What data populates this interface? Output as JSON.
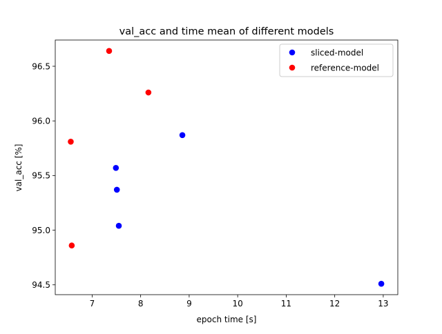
{
  "chart_data": {
    "type": "scatter",
    "title": "val_acc and time mean of different models",
    "xlabel": "epoch time [s]",
    "ylabel": "val_acc [%]",
    "xlim": [
      6.24,
      13.3
    ],
    "ylim": [
      94.41,
      96.74
    ],
    "xticks": [
      {
        "value": 7,
        "label": "7"
      },
      {
        "value": 8,
        "label": "8"
      },
      {
        "value": 9,
        "label": "9"
      },
      {
        "value": 10,
        "label": "10"
      },
      {
        "value": 11,
        "label": "11"
      },
      {
        "value": 12,
        "label": "12"
      },
      {
        "value": 13,
        "label": "13"
      }
    ],
    "yticks": [
      {
        "value": 94.5,
        "label": "94.5"
      },
      {
        "value": 95.0,
        "label": "95.0"
      },
      {
        "value": 95.5,
        "label": "95.5"
      },
      {
        "value": 96.0,
        "label": "96.0"
      },
      {
        "value": 96.5,
        "label": "96.5"
      }
    ],
    "grid": false,
    "legend_position": "top-right",
    "series": [
      {
        "name": "sliced-model",
        "color": "#0000ff",
        "points": [
          {
            "x": 8.86,
            "y": 95.87
          },
          {
            "x": 7.49,
            "y": 95.57
          },
          {
            "x": 7.51,
            "y": 95.37
          },
          {
            "x": 7.55,
            "y": 95.04
          },
          {
            "x": 12.96,
            "y": 94.51
          }
        ]
      },
      {
        "name": "reference-model",
        "color": "#ff0000",
        "points": [
          {
            "x": 7.35,
            "y": 96.64
          },
          {
            "x": 8.16,
            "y": 96.26
          },
          {
            "x": 6.56,
            "y": 95.81
          },
          {
            "x": 6.58,
            "y": 94.86
          }
        ]
      }
    ]
  }
}
